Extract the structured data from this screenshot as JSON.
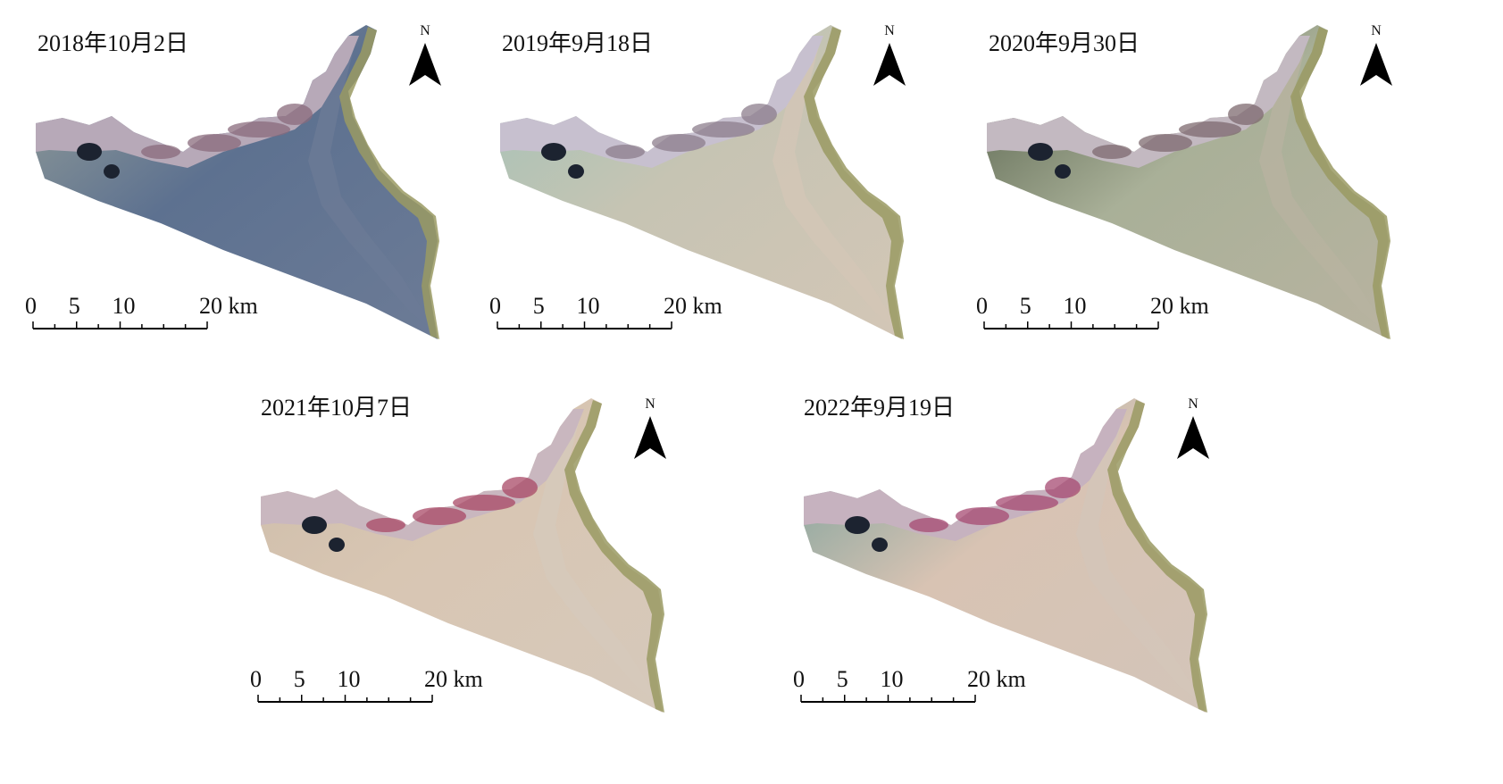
{
  "north_label": "N",
  "scale_bar": {
    "ticks": [
      "0",
      "5",
      "10",
      "20 km"
    ],
    "tick_values_km": [
      0,
      5,
      10,
      20
    ]
  },
  "panels": [
    {
      "date": "2018年10月2日",
      "colors": {
        "water": "#5d7190",
        "sea": "#6c7b96",
        "flat": "#9aa398",
        "land": "#b7a9b8",
        "veg": "#8a6b7c"
      }
    },
    {
      "date": "2019年9月18日",
      "colors": {
        "water": "#c6c4b3",
        "sea": "#d3c6b6",
        "flat": "#9fc2b8",
        "land": "#c7c0cf",
        "veg": "#8c7d8c"
      }
    },
    {
      "date": "2020年9月30日",
      "colors": {
        "water": "#a9b098",
        "sea": "#b8b3a0",
        "flat": "#4f5b45",
        "land": "#c3b9c1",
        "veg": "#7e6a6f"
      }
    },
    {
      "date": "2021年10月7日",
      "colors": {
        "water": "#d8c6b3",
        "sea": "#d6c9bb",
        "flat": "#cdbca9",
        "land": "#c9b7bf",
        "veg": "#a84866"
      }
    },
    {
      "date": "2022年9月19日",
      "colors": {
        "water": "#d8c3b3",
        "sea": "#d3c5b9",
        "flat": "#6c9c98",
        "land": "#c6b2bf",
        "veg": "#a64a72"
      }
    }
  ]
}
